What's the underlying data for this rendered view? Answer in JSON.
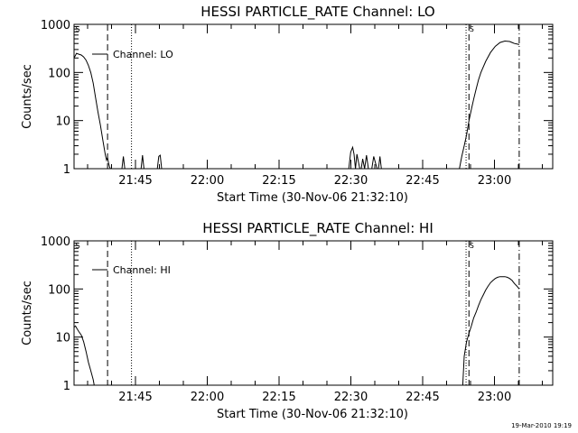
{
  "footer_date": "19-Mar-2010 19:19",
  "chart_data": [
    {
      "type": "line",
      "title": "HESSI PARTICLE_RATE Channel: LO",
      "xlabel": "Start Time (30-Nov-06 21:32:10)",
      "ylabel": "Counts/sec",
      "y_scale": "log",
      "ylim": [
        1,
        1000
      ],
      "y_ticks": [
        "1",
        "10",
        "100",
        "1000"
      ],
      "x_unit": "minutes after 21:32:10",
      "xlim": [
        0,
        100
      ],
      "x_ticks": [
        {
          "label": "21:45",
          "value": 12.83
        },
        {
          "label": "22:00",
          "value": 27.83
        },
        {
          "label": "22:15",
          "value": 42.83
        },
        {
          "label": "22:30",
          "value": 57.83
        },
        {
          "label": "22:45",
          "value": 72.83
        },
        {
          "label": "23:00",
          "value": 87.83
        }
      ],
      "legend": "Channel: LO",
      "markers": [
        {
          "style": "dashed",
          "x": 7.0
        },
        {
          "style": "dotted",
          "x": 12.0
        },
        {
          "style": "dotted",
          "x": 81.9
        },
        {
          "style": "dashed",
          "x": 82.5
        },
        {
          "style": "dashdot",
          "x": 93.0
        }
      ],
      "saa_labels": [
        {
          "text": "S",
          "x": 0.3
        },
        {
          "text": "S",
          "x": 82.6
        }
      ],
      "series": [
        {
          "x": [
            0,
            0.5,
            1.0,
            1.5,
            2.0,
            2.5,
            3.0,
            3.5,
            4.0,
            4.5,
            5.0,
            5.5,
            6.0,
            6.5,
            6.8,
            7.0,
            7.2,
            7.4,
            7.6,
            7.8,
            8,
            10,
            10.3,
            10.6,
            11,
            14,
            14.3,
            14.6,
            15,
            17.4,
            17.7,
            18,
            18.3,
            57.4,
            57.8,
            58.2,
            58.5,
            58.8,
            59.1,
            59.4,
            59.7,
            60,
            60.3,
            60.7,
            61.1,
            61.5,
            61.8,
            62.2,
            62.6,
            63.3,
            63.6,
            63.9,
            64.2,
            80.5,
            81.0,
            81.5,
            82.0,
            82.5,
            83.0,
            83.5,
            84.0,
            84.5,
            85.0,
            86.0,
            87.0,
            88.0,
            89.0,
            90.0,
            91.0,
            91.5,
            92.0,
            92.5,
            93.0
          ],
          "y": [
            200,
            250,
            240,
            230,
            210,
            180,
            140,
            100,
            60,
            30,
            15,
            8,
            4,
            2,
            1.5,
            1.7,
            1.3,
            1.1,
            1,
            1,
            1,
            1,
            1.8,
            1,
            1,
            1,
            1.9,
            1,
            1,
            1,
            1.8,
            1.9,
            1,
            1,
            2.2,
            2.8,
            2.0,
            1,
            2.0,
            1.4,
            1,
            1,
            1.6,
            1,
            1.9,
            1,
            1,
            1,
            1.8,
            1,
            1,
            1.8,
            1,
            1,
            1.8,
            3,
            5,
            10,
            17,
            28,
            45,
            70,
            100,
            170,
            260,
            350,
            420,
            450,
            440,
            420,
            400,
            390,
            380
          ]
        }
      ]
    },
    {
      "type": "line",
      "title": "HESSI PARTICLE_RATE Channel: HI",
      "xlabel": "Start Time (30-Nov-06 21:32:10)",
      "ylabel": "Counts/sec",
      "y_scale": "log",
      "ylim": [
        1,
        1000
      ],
      "y_ticks": [
        "1",
        "10",
        "100",
        "1000"
      ],
      "x_unit": "minutes after 21:32:10",
      "xlim": [
        0,
        100
      ],
      "x_ticks": [
        {
          "label": "21:45",
          "value": 12.83
        },
        {
          "label": "22:00",
          "value": 27.83
        },
        {
          "label": "22:15",
          "value": 42.83
        },
        {
          "label": "22:30",
          "value": 57.83
        },
        {
          "label": "22:45",
          "value": 72.83
        },
        {
          "label": "23:00",
          "value": 87.83
        }
      ],
      "legend": "Channel: HI",
      "markers": [
        {
          "style": "dashed",
          "x": 7.0
        },
        {
          "style": "dotted",
          "x": 12.0
        },
        {
          "style": "dotted",
          "x": 81.9
        },
        {
          "style": "dashed",
          "x": 82.5
        },
        {
          "style": "dashdot",
          "x": 93.0
        }
      ],
      "saa_labels": [
        {
          "text": "S",
          "x": 0.3
        },
        {
          "text": "S",
          "x": 82.6
        }
      ],
      "series": [
        {
          "x": [
            0,
            0.3,
            0.6,
            1.0,
            1.5,
            2.0,
            2.5,
            3.0,
            3.5,
            4.0,
            4.2,
            81.2,
            81.5,
            82.0,
            82.5,
            83.0,
            83.5,
            84.0,
            84.5,
            85.0,
            85.5,
            86.0,
            86.5,
            87.0,
            87.5,
            88.0,
            88.5,
            89.0,
            90.0,
            90.5,
            91.0,
            91.5,
            92.0,
            92.5,
            93.0
          ],
          "y": [
            16,
            17,
            15,
            13,
            11,
            8,
            5,
            3,
            2,
            1.3,
            1,
            1,
            4,
            8,
            12,
            17,
            25,
            33,
            45,
            60,
            75,
            95,
            115,
            135,
            150,
            165,
            175,
            180,
            180,
            175,
            165,
            150,
            130,
            115,
            100
          ]
        }
      ]
    }
  ]
}
